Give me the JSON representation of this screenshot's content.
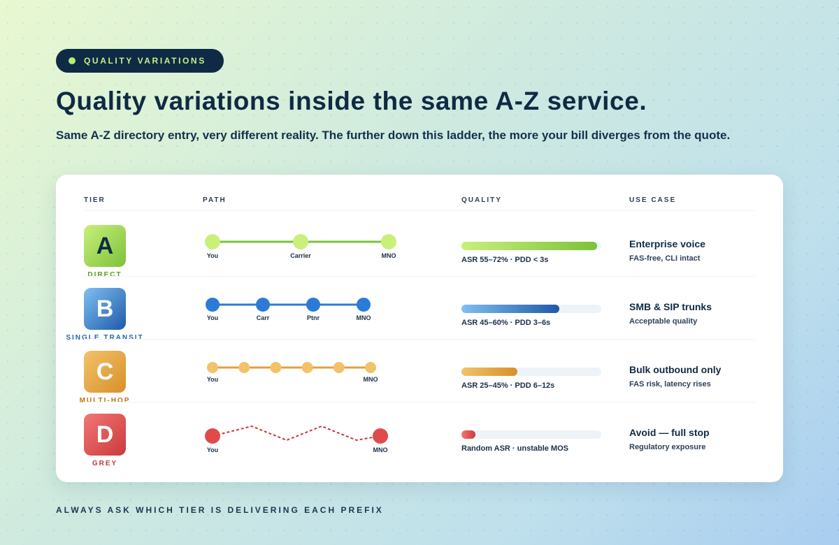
{
  "badge": {
    "label": "QUALITY VARIATIONS"
  },
  "title": "Quality variations inside the same A-Z service.",
  "subtitle": "Same A-Z directory entry, very different reality. The further down this ladder, the more your bill diverges from the quote.",
  "table": {
    "headers": {
      "tier": "TIER",
      "path": "PATH",
      "quality": "QUALITY",
      "use_case": "USE CASE"
    },
    "rows": [
      {
        "letter": "A",
        "tier_name": "DIRECT",
        "path_style": "solid",
        "path_nodes": [
          "You",
          "Carrier",
          "MNO"
        ],
        "quality_fill": 0.97,
        "quality_text": "ASR 55–72% · PDD < 3s",
        "use_title": "Enterprise voice",
        "use_sub": "FAS-free, CLI intact",
        "colors": {
          "light": "#c8f07a",
          "dark": "#7cc23a",
          "line": "#7cc23a",
          "node": "#c8f07a",
          "text": "#5a9a1e",
          "letter": "#0f2a44"
        }
      },
      {
        "letter": "B",
        "tier_name": "SINGLE TRANSIT",
        "path_style": "solid",
        "path_nodes": [
          "You",
          "Carr",
          "Ptnr",
          "MNO"
        ],
        "quality_fill": 0.7,
        "quality_text": "ASR 45–60% · PDD 3–6s",
        "use_title": "SMB & SIP trunks",
        "use_sub": "Acceptable quality",
        "colors": {
          "light": "#7fc0f2",
          "dark": "#1e5aa8",
          "line": "#2b7bd6",
          "node": "#2b7bd6",
          "text": "#2467ad",
          "letter": "#ffffff"
        }
      },
      {
        "letter": "C",
        "tier_name": "MULTI-HOP",
        "path_style": "solid",
        "path_nodes": [
          "You",
          "",
          "",
          "",
          "",
          "MNO"
        ],
        "quality_fill": 0.4,
        "quality_text": "ASR 25–45% · PDD 6–12s",
        "use_title": "Bulk outbound only",
        "use_sub": "FAS risk, latency rises",
        "colors": {
          "light": "#f2c26a",
          "dark": "#d8902a",
          "line": "#e0a040",
          "node": "#f2c26a",
          "text": "#b67712",
          "letter": "#ffffff"
        }
      },
      {
        "letter": "D",
        "tier_name": "GREY",
        "path_style": "zigzag",
        "path_nodes": [
          "You",
          "MNO"
        ],
        "quality_fill": 0.1,
        "quality_text": "Random ASR · unstable MOS",
        "use_title": "Avoid — full stop",
        "use_sub": "Regulatory exposure",
        "colors": {
          "light": "#f27676",
          "dark": "#cc3a3a",
          "line": "#c23a3a",
          "node": "#e04a4a",
          "text": "#c0393b",
          "letter": "#ffffff"
        }
      }
    ]
  },
  "footer": "ALWAYS ASK WHICH TIER IS DELIVERING EACH PREFIX"
}
